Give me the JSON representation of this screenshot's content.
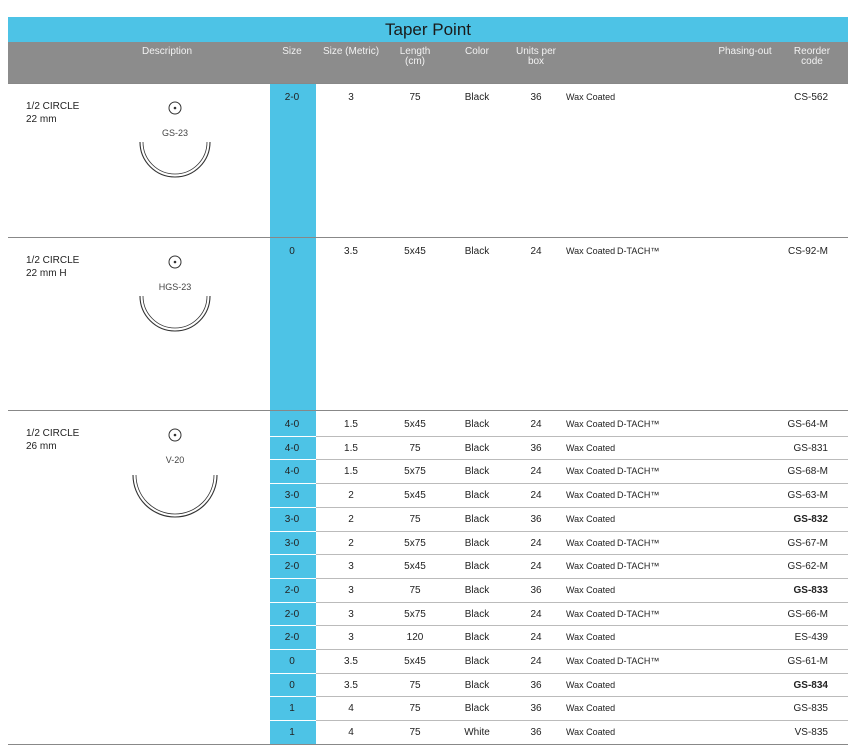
{
  "header": {
    "title": "Taper Point",
    "columns": [
      "Description",
      "Size",
      "Size (Metric)",
      "Length (cm)",
      "Color",
      "Units per box",
      "Phasing-out",
      "Reorder code"
    ]
  },
  "groups": [
    {
      "label": [
        "1/2 CIRCLE",
        "22 mm"
      ],
      "needle": "GS-23",
      "rows": [
        {
          "size": "2-0",
          "metric": "3",
          "length": "75",
          "color": "Black",
          "units": "36",
          "coating": "Wax Coated",
          "code": "CS-562"
        }
      ]
    },
    {
      "label": [
        "1/2 CIRCLE",
        "22 mm H"
      ],
      "needle": "HGS-23",
      "rows": [
        {
          "size": "0",
          "metric": "3.5",
          "length": "5x45",
          "color": "Black",
          "units": "24",
          "coating": "Wax Coated",
          "dtach": "D-TACH™",
          "code": "CS-92-M"
        }
      ]
    },
    {
      "label": [
        "1/2 CIRCLE",
        "26 mm"
      ],
      "needle": "V-20",
      "rows": [
        {
          "size": "4-0",
          "metric": "1.5",
          "length": "5x45",
          "color": "Black",
          "units": "24",
          "coating": "Wax Coated",
          "dtach": "D-TACH™",
          "code": "GS-64-M"
        },
        {
          "size": "4-0",
          "metric": "1.5",
          "length": "75",
          "color": "Black",
          "units": "36",
          "coating": "Wax Coated",
          "code": "GS-831"
        },
        {
          "size": "4-0",
          "metric": "1.5",
          "length": "5x75",
          "color": "Black",
          "units": "24",
          "coating": "Wax Coated",
          "dtach": "D-TACH™",
          "code": "GS-68-M"
        },
        {
          "size": "3-0",
          "metric": "2",
          "length": "5x45",
          "color": "Black",
          "units": "24",
          "coating": "Wax Coated",
          "dtach": "D-TACH™",
          "code": "GS-63-M"
        },
        {
          "size": "3-0",
          "metric": "2",
          "length": "75",
          "color": "Black",
          "units": "36",
          "coating": "Wax Coated",
          "code": "GS-832",
          "bold": true
        },
        {
          "size": "3-0",
          "metric": "2",
          "length": "5x75",
          "color": "Black",
          "units": "24",
          "coating": "Wax Coated",
          "dtach": "D-TACH™",
          "code": "GS-67-M"
        },
        {
          "size": "2-0",
          "metric": "3",
          "length": "5x45",
          "color": "Black",
          "units": "24",
          "coating": "Wax Coated",
          "dtach": "D-TACH™",
          "code": "GS-62-M"
        },
        {
          "size": "2-0",
          "metric": "3",
          "length": "75",
          "color": "Black",
          "units": "36",
          "coating": "Wax Coated",
          "code": "GS-833",
          "bold": true
        },
        {
          "size": "2-0",
          "metric": "3",
          "length": "5x75",
          "color": "Black",
          "units": "24",
          "coating": "Wax Coated",
          "dtach": "D-TACH™",
          "code": "GS-66-M"
        },
        {
          "size": "2-0",
          "metric": "3",
          "length": "120",
          "color": "Black",
          "units": "24",
          "coating": "Wax Coated",
          "code": "ES-439"
        },
        {
          "size": "0",
          "metric": "3.5",
          "length": "5x45",
          "color": "Black",
          "units": "24",
          "coating": "Wax Coated",
          "dtach": "D-TACH™",
          "code": "GS-61-M"
        },
        {
          "size": "0",
          "metric": "3.5",
          "length": "75",
          "color": "Black",
          "units": "36",
          "coating": "Wax Coated",
          "code": "GS-834",
          "bold": true
        },
        {
          "size": "1",
          "metric": "4",
          "length": "75",
          "color": "Black",
          "units": "36",
          "coating": "Wax Coated",
          "code": "GS-835"
        },
        {
          "size": "1",
          "metric": "4",
          "length": "75",
          "color": "White",
          "units": "36",
          "coating": "Wax Coated",
          "code": "VS-835"
        }
      ]
    }
  ]
}
